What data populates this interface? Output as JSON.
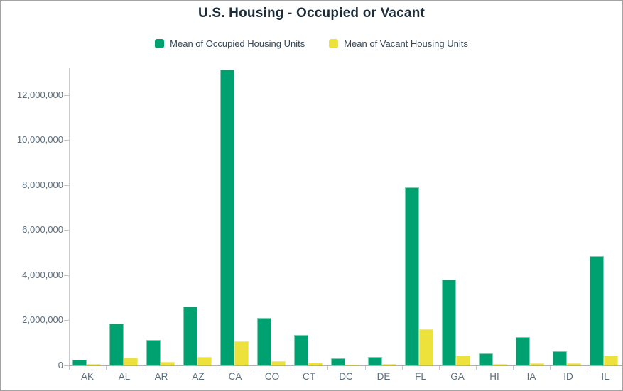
{
  "title": "U.S. Housing - Occupied or Vacant",
  "legend": {
    "occupied_label": "Mean of Occupied Housing Units",
    "vacant_label": "Mean of Vacant Housing Units"
  },
  "colors": {
    "occupied": "#00a171",
    "occupied_edge": "#7ecdb0",
    "vacant": "#ede23b",
    "vacant_edge": "#f2ea86",
    "title_text": "#1d2e3a",
    "axis_text": "#5c6e7e",
    "legend_text": "#33475a",
    "axis_line": "#c9cccc",
    "baseline": "#b0b0b0",
    "tick": "#c4c4c4"
  },
  "chart_data": {
    "type": "bar",
    "title": "U.S. Housing - Occupied or Vacant",
    "xlabel": "",
    "ylabel": "",
    "grid": false,
    "legend_position": "top",
    "categories": [
      "AK",
      "AL",
      "AR",
      "AZ",
      "CA",
      "CO",
      "CT",
      "DC",
      "DE",
      "FL",
      "GA",
      "HI",
      "IA",
      "ID",
      "IL"
    ],
    "series": [
      {
        "name": "Mean of Occupied Housing Units",
        "color": "#00a171",
        "values": [
          250000,
          1860000,
          1140000,
          2620000,
          13110000,
          2120000,
          1340000,
          300000,
          370000,
          7910000,
          3800000,
          540000,
          1250000,
          620000,
          4840000
        ]
      },
      {
        "name": "Mean of Vacant Housing Units",
        "color": "#ede23b",
        "values": [
          60000,
          360000,
          170000,
          370000,
          1080000,
          200000,
          130000,
          30000,
          70000,
          1610000,
          450000,
          70000,
          100000,
          80000,
          450000
        ]
      }
    ],
    "ylim": [
      0,
      13180000
    ],
    "yticks": [
      0,
      2000000,
      4000000,
      6000000,
      8000000,
      10000000,
      12000000
    ],
    "ytick_labels": [
      "0",
      "2,000,000",
      "4,000,000",
      "6,000,000",
      "8,000,000",
      "10,000,000",
      "12,000,000"
    ]
  }
}
